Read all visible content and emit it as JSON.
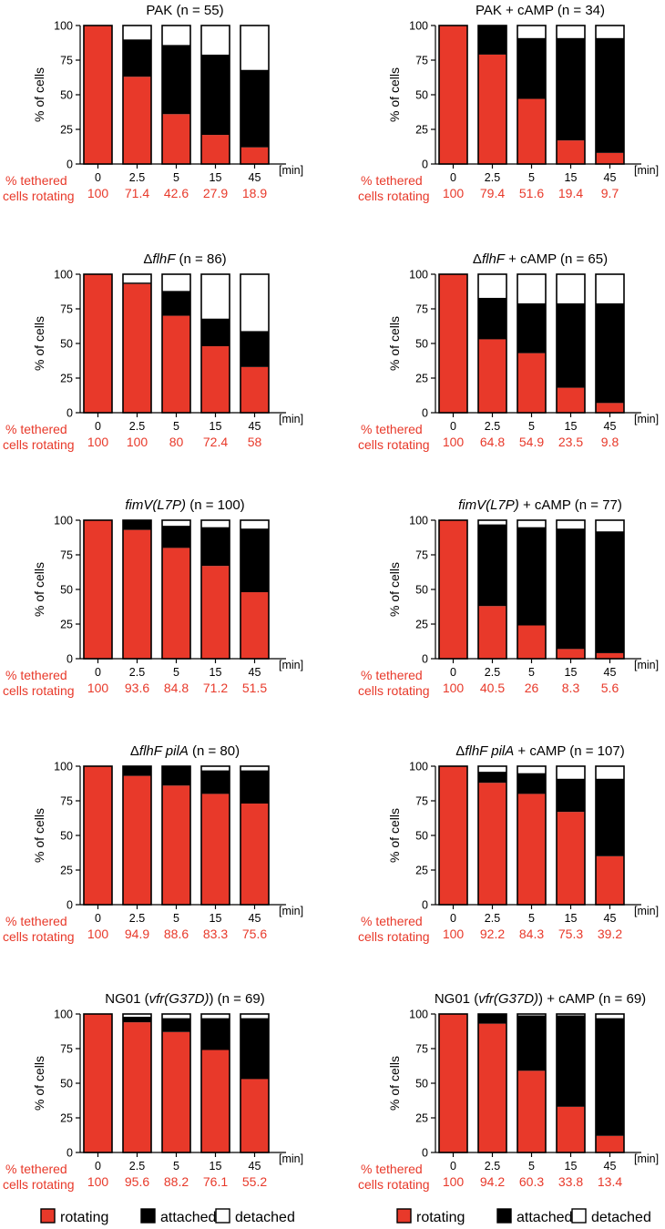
{
  "colors": {
    "rotating": "#e8392a",
    "attached": "#000000",
    "detached": "#ffffff",
    "stat_text": "#e8392a",
    "axis": "#000000"
  },
  "common": {
    "ylabel": "% of cells",
    "yticks": [
      "0",
      "25",
      "50",
      "75",
      "100"
    ],
    "unit": "[min]",
    "row_label_line1": "% tethered",
    "row_label_line2": "cells rotating"
  },
  "legend": [
    {
      "key": "rotating",
      "label": "rotating"
    },
    {
      "key": "attached",
      "label": "attached"
    },
    {
      "key": "detached",
      "label": "detached"
    }
  ],
  "chart_data": [
    {
      "type": "bar",
      "stacked": true,
      "title_parts": [
        {
          "t": "PAK (n = 55)",
          "i": false
        }
      ],
      "categories": [
        "0",
        "2.5",
        "5",
        "15",
        "45"
      ],
      "ylabel": "% of cells",
      "xlabel": "[min]",
      "ylim": [
        0,
        100
      ],
      "series": [
        {
          "name": "rotating",
          "values": [
            100,
            63,
            36,
            21,
            12
          ]
        },
        {
          "name": "attached",
          "values": [
            0,
            27,
            50,
            58,
            56
          ]
        },
        {
          "name": "detached",
          "values": [
            0,
            10,
            14,
            21,
            32
          ]
        }
      ],
      "percent_rotating": [
        "100",
        "71.4",
        "42.6",
        "27.9",
        "18.9"
      ]
    },
    {
      "type": "bar",
      "stacked": true,
      "title_parts": [
        {
          "t": "PAK + cAMP (n = 34)",
          "i": false
        }
      ],
      "categories": [
        "0",
        "2.5",
        "5",
        "15",
        "45"
      ],
      "ylabel": "% of cells",
      "xlabel": "[min]",
      "ylim": [
        0,
        100
      ],
      "series": [
        {
          "name": "rotating",
          "values": [
            100,
            79,
            47,
            17,
            8
          ]
        },
        {
          "name": "attached",
          "values": [
            0,
            21,
            44,
            74,
            83
          ]
        },
        {
          "name": "detached",
          "values": [
            0,
            0,
            9,
            9,
            9
          ]
        }
      ],
      "percent_rotating": [
        "100",
        "79.4",
        "51.6",
        "19.4",
        "9.7"
      ]
    },
    {
      "type": "bar",
      "stacked": true,
      "title_parts": [
        {
          "t": "Δ",
          "i": false
        },
        {
          "t": "flhF",
          "i": true
        },
        {
          "t": " (n = 86)",
          "i": false
        }
      ],
      "categories": [
        "0",
        "2.5",
        "5",
        "15",
        "45"
      ],
      "ylabel": "% of cells",
      "xlabel": "[min]",
      "ylim": [
        0,
        100
      ],
      "series": [
        {
          "name": "rotating",
          "values": [
            100,
            93,
            70,
            48,
            33
          ]
        },
        {
          "name": "attached",
          "values": [
            0,
            1,
            18,
            20,
            26
          ]
        },
        {
          "name": "detached",
          "values": [
            0,
            6,
            12,
            32,
            41
          ]
        }
      ],
      "percent_rotating": [
        "100",
        "100",
        "80",
        "72.4",
        "58"
      ]
    },
    {
      "type": "bar",
      "stacked": true,
      "title_parts": [
        {
          "t": "Δ",
          "i": false
        },
        {
          "t": "flhF",
          "i": true
        },
        {
          "t": " + cAMP (n = 65)",
          "i": false
        }
      ],
      "categories": [
        "0",
        "2.5",
        "5",
        "15",
        "45"
      ],
      "ylabel": "% of cells",
      "xlabel": "[min]",
      "ylim": [
        0,
        100
      ],
      "series": [
        {
          "name": "rotating",
          "values": [
            100,
            53,
            43,
            18,
            7
          ]
        },
        {
          "name": "attached",
          "values": [
            0,
            30,
            36,
            61,
            72
          ]
        },
        {
          "name": "detached",
          "values": [
            0,
            17,
            21,
            21,
            21
          ]
        }
      ],
      "percent_rotating": [
        "100",
        "64.8",
        "54.9",
        "23.5",
        "9.8"
      ]
    },
    {
      "type": "bar",
      "stacked": true,
      "title_parts": [
        {
          "t": "fimV(L7P)",
          "i": true
        },
        {
          "t": " (n = 100)",
          "i": false
        }
      ],
      "categories": [
        "0",
        "2.5",
        "5",
        "15",
        "45"
      ],
      "ylabel": "% of cells",
      "xlabel": "[min]",
      "ylim": [
        0,
        100
      ],
      "series": [
        {
          "name": "rotating",
          "values": [
            100,
            93,
            80,
            67,
            48
          ]
        },
        {
          "name": "attached",
          "values": [
            0,
            7,
            16,
            28,
            46
          ]
        },
        {
          "name": "detached",
          "values": [
            0,
            0,
            4,
            5,
            6
          ]
        }
      ],
      "percent_rotating": [
        "100",
        "93.6",
        "84.8",
        "71.2",
        "51.5"
      ]
    },
    {
      "type": "bar",
      "stacked": true,
      "title_parts": [
        {
          "t": "fimV(L7P)",
          "i": true
        },
        {
          "t": " + cAMP (n = 77)",
          "i": false
        }
      ],
      "categories": [
        "0",
        "2.5",
        "5",
        "15",
        "45"
      ],
      "ylabel": "% of cells",
      "xlabel": "[min]",
      "ylim": [
        0,
        100
      ],
      "series": [
        {
          "name": "rotating",
          "values": [
            100,
            38,
            24,
            7,
            4
          ]
        },
        {
          "name": "attached",
          "values": [
            0,
            59,
            71,
            87,
            88
          ]
        },
        {
          "name": "detached",
          "values": [
            0,
            3,
            5,
            6,
            8
          ]
        }
      ],
      "percent_rotating": [
        "100",
        "40.5",
        "26",
        "8.3",
        "5.6"
      ]
    },
    {
      "type": "bar",
      "stacked": true,
      "title_parts": [
        {
          "t": "Δ",
          "i": false
        },
        {
          "t": "flhF pilA",
          "i": true
        },
        {
          "t": " (n = 80)",
          "i": false
        }
      ],
      "categories": [
        "0",
        "2.5",
        "5",
        "15",
        "45"
      ],
      "ylabel": "% of cells",
      "xlabel": "[min]",
      "ylim": [
        0,
        100
      ],
      "series": [
        {
          "name": "rotating",
          "values": [
            100,
            93,
            86,
            80,
            73
          ]
        },
        {
          "name": "attached",
          "values": [
            0,
            7,
            14,
            17,
            24
          ]
        },
        {
          "name": "detached",
          "values": [
            0,
            0,
            0,
            3,
            3
          ]
        }
      ],
      "percent_rotating": [
        "100",
        "94.9",
        "88.6",
        "83.3",
        "75.6"
      ]
    },
    {
      "type": "bar",
      "stacked": true,
      "title_parts": [
        {
          "t": "Δ",
          "i": false
        },
        {
          "t": "flhF pilA",
          "i": true
        },
        {
          "t": " + cAMP (n = 107)",
          "i": false
        }
      ],
      "categories": [
        "0",
        "2.5",
        "5",
        "15",
        "45"
      ],
      "ylabel": "% of cells",
      "xlabel": "[min]",
      "ylim": [
        0,
        100
      ],
      "series": [
        {
          "name": "rotating",
          "values": [
            100,
            88,
            80,
            67,
            35
          ]
        },
        {
          "name": "attached",
          "values": [
            0,
            8,
            15,
            24,
            56
          ]
        },
        {
          "name": "detached",
          "values": [
            0,
            4,
            5,
            9,
            9
          ]
        }
      ],
      "percent_rotating": [
        "100",
        "92.2",
        "84.3",
        "75.3",
        "39.2"
      ]
    },
    {
      "type": "bar",
      "stacked": true,
      "title_parts": [
        {
          "t": "NG01 (",
          "i": false
        },
        {
          "t": "vfr(G37D)",
          "i": true
        },
        {
          "t": ") (n = 69)",
          "i": false
        }
      ],
      "categories": [
        "0",
        "2.5",
        "5",
        "15",
        "45"
      ],
      "ylabel": "% of cells",
      "xlabel": "[min]",
      "ylim": [
        0,
        100
      ],
      "series": [
        {
          "name": "rotating",
          "values": [
            100,
            94,
            87,
            74,
            53
          ]
        },
        {
          "name": "attached",
          "values": [
            0,
            4,
            10,
            23,
            44
          ]
        },
        {
          "name": "detached",
          "values": [
            0,
            2,
            3,
            3,
            3
          ]
        }
      ],
      "percent_rotating": [
        "100",
        "95.6",
        "88.2",
        "76.1",
        "55.2"
      ]
    },
    {
      "type": "bar",
      "stacked": true,
      "title_parts": [
        {
          "t": "NG01 (",
          "i": false
        },
        {
          "t": "vfr(G37D)",
          "i": true
        },
        {
          "t": ") + cAMP (n = 69)",
          "i": false
        }
      ],
      "categories": [
        "0",
        "2.5",
        "5",
        "15",
        "45"
      ],
      "ylabel": "% of cells",
      "xlabel": "[min]",
      "ylim": [
        0,
        100
      ],
      "series": [
        {
          "name": "rotating",
          "values": [
            100,
            93,
            59,
            33,
            12
          ]
        },
        {
          "name": "attached",
          "values": [
            0,
            7,
            40,
            66,
            85
          ]
        },
        {
          "name": "detached",
          "values": [
            0,
            0,
            1,
            1,
            3
          ]
        }
      ],
      "percent_rotating": [
        "100",
        "94.2",
        "60.3",
        "33.8",
        "13.4"
      ]
    }
  ]
}
